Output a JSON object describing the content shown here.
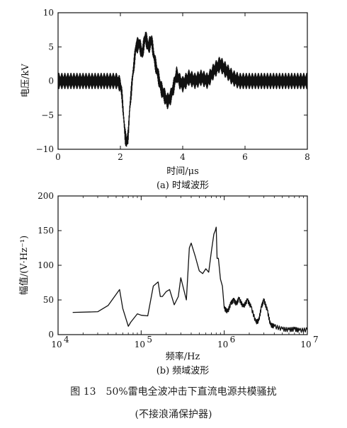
{
  "chart_data": [
    {
      "type": "line",
      "xlabel": "时间/μs",
      "ylabel": "电压/kV",
      "subtitle": "(a) 时域波形",
      "xlim": [
        0,
        8
      ],
      "ylim": [
        -10,
        10
      ],
      "xticks": [
        0,
        2,
        4,
        6,
        8
      ],
      "yticks": [
        -10,
        -5,
        0,
        5,
        10
      ],
      "grid": false,
      "series": [
        {
          "x": [
            0,
            1.9,
            2.0,
            2.05,
            2.1,
            2.15,
            2.2,
            2.25,
            2.3,
            2.4,
            2.5,
            2.6,
            2.7,
            2.8,
            2.9,
            3.0,
            3.1,
            3.2,
            3.3,
            3.4,
            3.5,
            3.6,
            3.7,
            3.8,
            3.9,
            4.0,
            4.2,
            4.4,
            4.6,
            4.8,
            5.0,
            5.2,
            5.4,
            5.6,
            5.8,
            6.0,
            6.5,
            7.0,
            7.5,
            8.0
          ],
          "y": [
            0,
            0,
            -0.5,
            -2,
            -5,
            -8,
            -9,
            -8,
            -4,
            1,
            5,
            5.5,
            4,
            6.5,
            5,
            6,
            3,
            1,
            -1,
            -2,
            -3,
            -2.5,
            -1,
            1,
            0,
            -0.5,
            0.5,
            0,
            0.5,
            0,
            1.5,
            2.5,
            1.5,
            0.5,
            0,
            0,
            0,
            0,
            0,
            0
          ],
          "noise_kV": 1.2
        }
      ]
    },
    {
      "type": "line",
      "xlabel": "频率/Hz",
      "ylabel": "幅值/(V·Hz⁻¹)",
      "subtitle": "(b) 频域波形",
      "xscale": "log",
      "xlim": [
        10000,
        10000000
      ],
      "ylim": [
        0,
        200
      ],
      "xtick_labels": [
        "10",
        "4",
        "10",
        "5",
        "10",
        "6",
        "10",
        "7"
      ],
      "yticks": [
        0,
        50,
        100,
        150,
        200
      ],
      "grid": false,
      "series": [
        {
          "x": [
            15000,
            30000,
            40000,
            55000,
            60000,
            70000,
            75000,
            90000,
            100000,
            120000,
            140000,
            160000,
            170000,
            180000,
            200000,
            220000,
            250000,
            280000,
            300000,
            350000,
            380000,
            400000,
            450000,
            500000,
            550000,
            600000,
            650000,
            700000,
            750000,
            780000,
            800000,
            820000,
            850000,
            900000,
            950000,
            1000000,
            1100000,
            1200000,
            1300000,
            1400000,
            1500000,
            1700000,
            1900000,
            2100000,
            2400000,
            2600000,
            2800000,
            3000000,
            3300000,
            3600000,
            4000000,
            5000000,
            6000000,
            7000000,
            8000000,
            10000000
          ],
          "y": [
            32,
            33,
            42,
            65,
            38,
            12,
            18,
            30,
            28,
            27,
            70,
            76,
            55,
            55,
            62,
            65,
            43,
            55,
            82,
            50,
            125,
            132,
            112,
            92,
            88,
            95,
            90,
            120,
            145,
            150,
            155,
            110,
            110,
            80,
            70,
            38,
            33,
            45,
            50,
            44,
            52,
            40,
            50,
            40,
            18,
            20,
            40,
            50,
            35,
            14,
            12,
            8,
            7,
            8,
            6,
            7
          ]
        }
      ]
    }
  ],
  "caption": {
    "line1": "图 13　50%雷电全波冲击下直流电源共模骚扰",
    "line2": "(不接浪涌保护器)"
  }
}
